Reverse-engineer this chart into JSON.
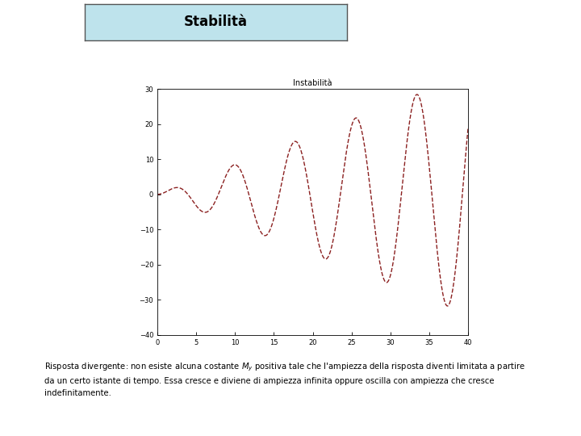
{
  "title_box": "Stabilità",
  "plot_title": "Instabilità",
  "line_color": "#8B2020",
  "line_style": "--",
  "line_width": 1.0,
  "x_min": 0,
  "x_max": 40,
  "y_min": -40,
  "y_max": 30,
  "x_ticks": [
    0,
    5,
    10,
    15,
    20,
    25,
    30,
    35,
    40
  ],
  "y_ticks": [
    -40,
    -30,
    -20,
    -10,
    0,
    10,
    20,
    30
  ],
  "background_color": "#ffffff",
  "title_box_color": "#BEE3EC",
  "plot_surround_color": "#C0C0C0",
  "axes_bg_color": "#ffffff",
  "caption_text": "Risposta divergente: non esiste alcuna costante $M_y$ positiva tale che l'ampiezza della risposta diventi limitata a partire\nda un certo istante di tempo. Essa cresce e diviene di ampiezza infinita oppure oscilla con ampiezza che cresce\nindefinitamente.",
  "frequency": 0.8,
  "scale": 0.85
}
